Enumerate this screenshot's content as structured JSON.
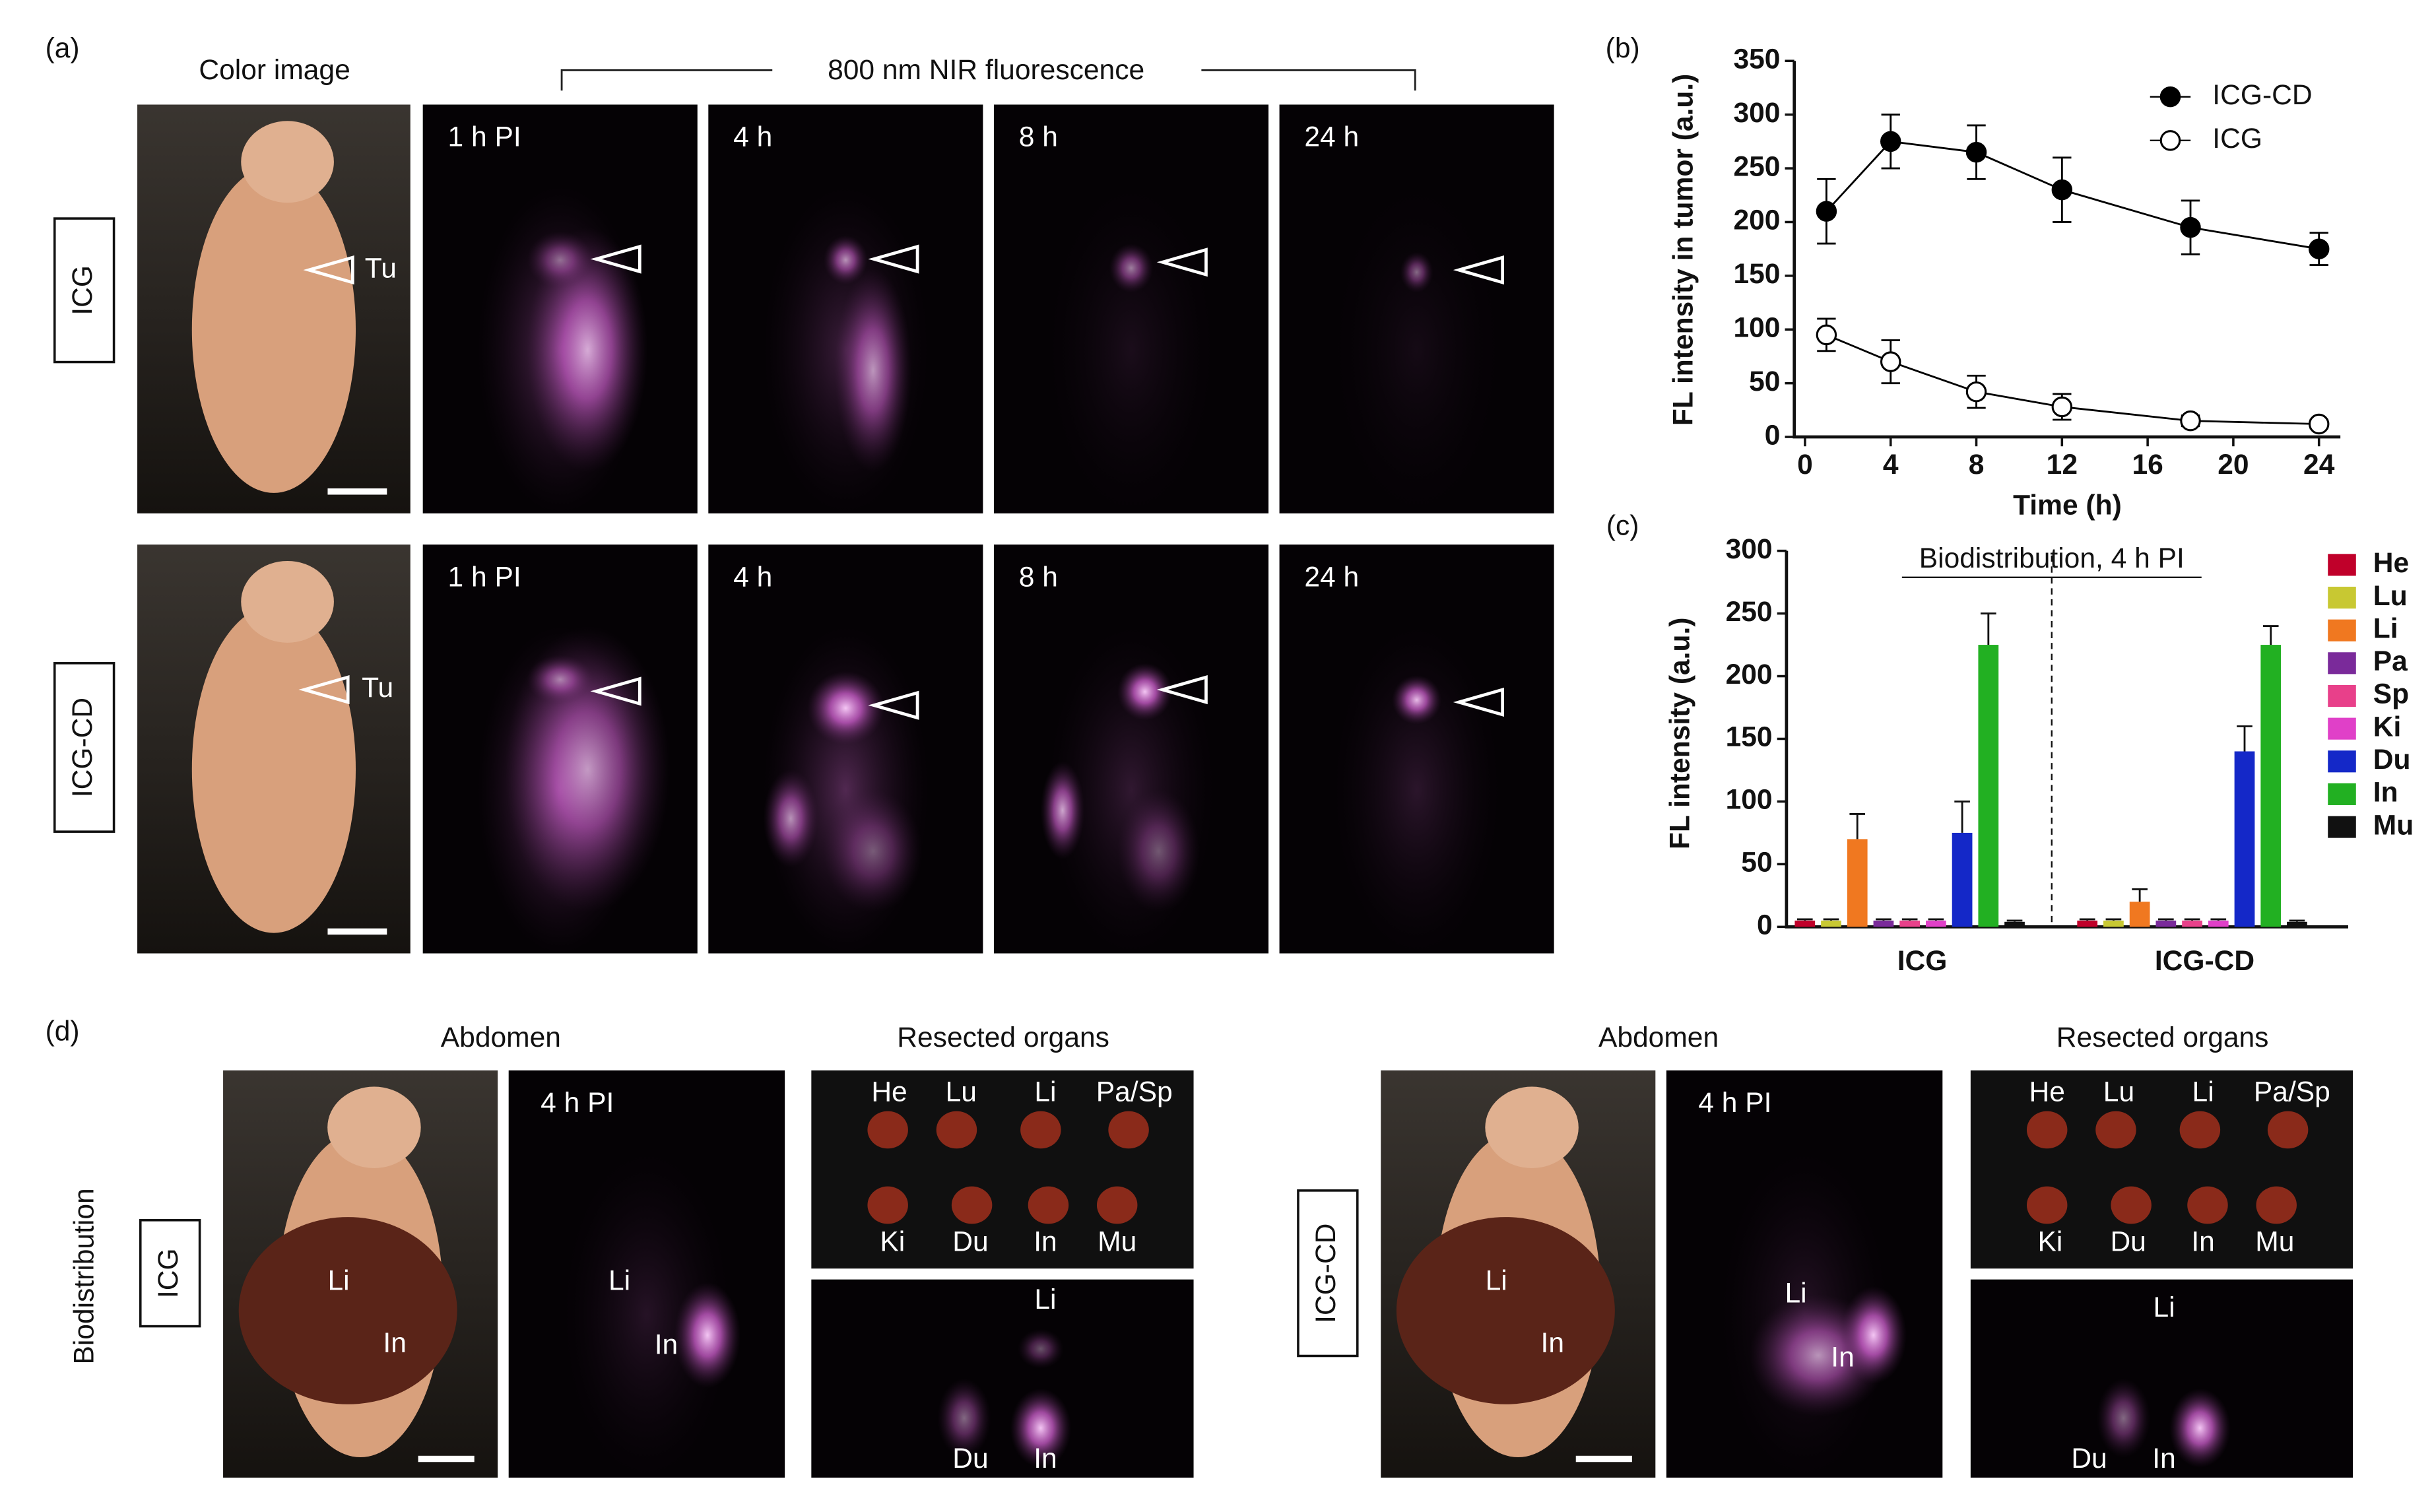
{
  "panel_a": {
    "label": "(a)",
    "color_header": "Color image",
    "nir_header": "800 nm NIR fluorescence",
    "rows": [
      {
        "name": "ICG",
        "tumor": "Tu",
        "times": [
          "1 h PI",
          "4 h",
          "8 h",
          "24 h"
        ]
      },
      {
        "name": "ICG-CD",
        "tumor": "Tu",
        "times": [
          "1 h PI",
          "4 h",
          "8 h",
          "24 h"
        ]
      }
    ]
  },
  "panel_b_label": "(b)",
  "panel_c_label": "(c)",
  "chart_data": [
    {
      "type": "line",
      "x_label": "Time (h)",
      "y_label": "FL intensity in tumor (a.u.)",
      "x": [
        1,
        4,
        8,
        12,
        18,
        24
      ],
      "xlim": [
        -0.5,
        25
      ],
      "xticks": [
        0,
        4,
        8,
        12,
        16,
        20,
        24
      ],
      "ylim": [
        0,
        350
      ],
      "yticks": [
        0,
        50,
        100,
        150,
        200,
        250,
        300,
        350
      ],
      "legend": "upper right",
      "series": [
        {
          "name": "ICG-CD",
          "color": "#000000",
          "marker": "filled",
          "values": [
            210,
            275,
            265,
            230,
            195,
            175
          ],
          "errors": [
            30,
            25,
            25,
            30,
            25,
            15
          ]
        },
        {
          "name": "ICG",
          "color": "#000000",
          "marker": "open",
          "values": [
            95,
            70,
            42,
            28,
            15,
            12
          ],
          "errors": [
            15,
            20,
            15,
            12,
            5,
            4
          ]
        }
      ]
    },
    {
      "type": "bar",
      "subtitle": "Biodistribution, 4 h PI",
      "y_label": "FL intensity (a.u.)",
      "categories": [
        "ICG",
        "ICG-CD"
      ],
      "ylim": [
        0,
        300
      ],
      "yticks": [
        0,
        50,
        100,
        150,
        200,
        250,
        300
      ],
      "legend": "right",
      "series": [
        {
          "name": "He",
          "color": "#c0002a",
          "values": [
            5,
            5
          ],
          "errors": [
            1,
            1
          ]
        },
        {
          "name": "Lu",
          "color": "#c8c832",
          "values": [
            5,
            5
          ],
          "errors": [
            1,
            1
          ]
        },
        {
          "name": "Li",
          "color": "#f07820",
          "values": [
            70,
            20
          ],
          "errors": [
            20,
            10
          ]
        },
        {
          "name": "Pa",
          "color": "#7a2a9a",
          "values": [
            5,
            5
          ],
          "errors": [
            1,
            1
          ]
        },
        {
          "name": "Sp",
          "color": "#e8408a",
          "values": [
            5,
            5
          ],
          "errors": [
            1,
            1
          ]
        },
        {
          "name": "Ki",
          "color": "#e040c8",
          "values": [
            5,
            5
          ],
          "errors": [
            1,
            1
          ]
        },
        {
          "name": "Du",
          "color": "#1428c8",
          "values": [
            75,
            140
          ],
          "errors": [
            25,
            20
          ]
        },
        {
          "name": "In",
          "color": "#22b022",
          "values": [
            225,
            225
          ],
          "errors": [
            25,
            15
          ]
        },
        {
          "name": "Mu",
          "color": "#111111",
          "values": [
            4,
            4
          ],
          "errors": [
            1,
            1
          ]
        }
      ]
    }
  ],
  "panel_d": {
    "label": "(d)",
    "side_label": "Biodistribution",
    "groups": [
      {
        "name": "ICG",
        "abdomen": "Abdomen",
        "time": "4 h PI",
        "organs_title": "Resected organs",
        "photo_labels": [
          "Li",
          "In"
        ],
        "fluor_labels": [
          "Li",
          "In"
        ],
        "organ_labels": [
          "He",
          "Lu",
          "Li",
          "Pa/Sp",
          "Ki",
          "Du",
          "In",
          "Mu"
        ],
        "organ_fluor_labels": [
          "Li",
          "Du",
          "In"
        ]
      },
      {
        "name": "ICG-CD",
        "abdomen": "Abdomen",
        "time": "4 h PI",
        "organs_title": "Resected organs",
        "photo_labels": [
          "Li",
          "In"
        ],
        "fluor_labels": [
          "Li",
          "In"
        ],
        "organ_labels": [
          "He",
          "Lu",
          "Li",
          "Pa/Sp",
          "Ki",
          "Du",
          "In",
          "Mu"
        ],
        "organ_fluor_labels": [
          "Li",
          "Du",
          "In"
        ]
      }
    ]
  }
}
